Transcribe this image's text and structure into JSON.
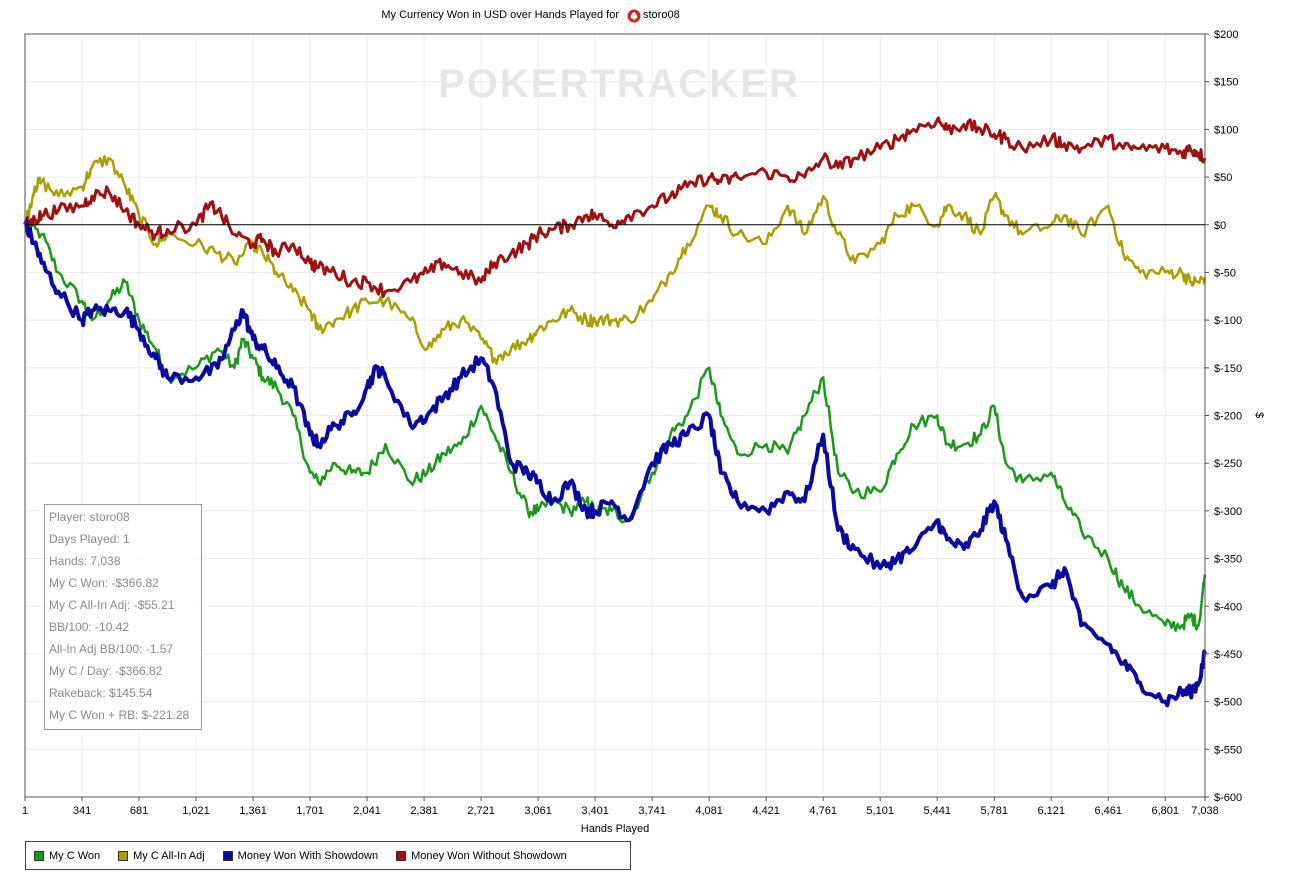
{
  "chart_data": {
    "type": "line",
    "title": "My Currency Won in USD over Hands Played for",
    "player_name": "storo08",
    "watermark": "POKERTRACKER",
    "xlabel": "Hands Played",
    "ylabel": "$",
    "xlim": [
      1,
      7038
    ],
    "ylim": [
      -600,
      200
    ],
    "x_ticks": [
      "1",
      "341",
      "681",
      "1,021",
      "1,361",
      "1,701",
      "2,041",
      "2,381",
      "2,721",
      "3,061",
      "3,401",
      "3,741",
      "4,081",
      "4,421",
      "4,761",
      "5,101",
      "5,441",
      "5,781",
      "6,121",
      "6,461",
      "6,801",
      "7,038"
    ],
    "x_tick_values": [
      1,
      341,
      681,
      1021,
      1361,
      1701,
      2041,
      2381,
      2721,
      3061,
      3401,
      3741,
      4081,
      4421,
      4761,
      5101,
      5441,
      5781,
      6121,
      6461,
      6801,
      7038
    ],
    "y_ticks": [
      "$200",
      "$150",
      "$100",
      "$50",
      "$0",
      "$-50",
      "$-100",
      "$-150",
      "$-200",
      "$-250",
      "$-300",
      "$-350",
      "$-400",
      "$-450",
      "$-500",
      "$-550",
      "$-600"
    ],
    "y_tick_values": [
      200,
      150,
      100,
      50,
      0,
      -50,
      -100,
      -150,
      -200,
      -250,
      -300,
      -350,
      -400,
      -450,
      -500,
      -550,
      -600
    ],
    "grid": true,
    "series": [
      {
        "name": "My C Won",
        "color": "#1a9a1a",
        "x": [
          1,
          100,
          200,
          341,
          400,
          500,
          600,
          681,
          780,
          850,
          1021,
          1150,
          1250,
          1300,
          1361,
          1420,
          1500,
          1600,
          1701,
          1750,
          1850,
          1950,
          2041,
          2150,
          2300,
          2400,
          2500,
          2600,
          2721,
          2800,
          2900,
          3000,
          3061,
          3150,
          3250,
          3350,
          3401,
          3500,
          3600,
          3741,
          3850,
          3950,
          4081,
          4150,
          4250,
          4421,
          4550,
          4650,
          4761,
          4850,
          4950,
          5101,
          5200,
          5300,
          5441,
          5500,
          5600,
          5700,
          5781,
          5850,
          5950,
          6121,
          6200,
          6300,
          6461,
          6550,
          6650,
          6801,
          6900,
          6950,
          7000,
          7038
        ],
        "y": [
          0,
          -10,
          -50,
          -80,
          -100,
          -80,
          -60,
          -100,
          -130,
          -160,
          -150,
          -130,
          -150,
          -120,
          -140,
          -160,
          -170,
          -200,
          -260,
          -270,
          -250,
          -260,
          -260,
          -230,
          -270,
          -260,
          -240,
          -230,
          -190,
          -220,
          -260,
          -300,
          -300,
          -290,
          -300,
          -290,
          -300,
          -300,
          -310,
          -260,
          -220,
          -200,
          -150,
          -200,
          -240,
          -230,
          -240,
          -200,
          -160,
          -260,
          -280,
          -280,
          -240,
          -210,
          -200,
          -230,
          -230,
          -220,
          -190,
          -250,
          -270,
          -260,
          -290,
          -320,
          -350,
          -380,
          -400,
          -420,
          -420,
          -410,
          -420,
          -366.82
        ]
      },
      {
        "name": "My C All-In Adj",
        "color": "#a8a000",
        "x": [
          1,
          60,
          100,
          200,
          341,
          400,
          500,
          600,
          681,
          780,
          850,
          1021,
          1150,
          1250,
          1361,
          1420,
          1500,
          1600,
          1701,
          1750,
          1850,
          1950,
          2041,
          2150,
          2300,
          2400,
          2500,
          2600,
          2721,
          2800,
          2900,
          3000,
          3061,
          3150,
          3250,
          3350,
          3401,
          3500,
          3600,
          3741,
          3850,
          3950,
          4081,
          4150,
          4250,
          4421,
          4550,
          4650,
          4761,
          4850,
          4950,
          5101,
          5200,
          5300,
          5441,
          5500,
          5600,
          5700,
          5781,
          5850,
          5950,
          6121,
          6200,
          6300,
          6461,
          6550,
          6650,
          6801,
          6900,
          6950,
          7000,
          7038
        ],
        "y": [
          0,
          40,
          45,
          30,
          40,
          60,
          70,
          40,
          10,
          -20,
          -10,
          -20,
          -30,
          -40,
          -20,
          -30,
          -50,
          -70,
          -90,
          -110,
          -100,
          -90,
          -80,
          -80,
          -100,
          -130,
          -110,
          -100,
          -120,
          -140,
          -130,
          -120,
          -110,
          -100,
          -90,
          -100,
          -100,
          -100,
          -100,
          -80,
          -50,
          -20,
          20,
          10,
          -10,
          -20,
          20,
          -10,
          30,
          -10,
          -40,
          -20,
          10,
          20,
          0,
          20,
          10,
          -10,
          30,
          10,
          -10,
          0,
          10,
          -10,
          20,
          -30,
          -50,
          -50,
          -50,
          -60,
          -60,
          -55.21
        ]
      },
      {
        "name": "Money Won With Showdown",
        "color": "#0a0aa0",
        "x": [
          1,
          60,
          100,
          200,
          341,
          400,
          500,
          600,
          681,
          780,
          850,
          1021,
          1150,
          1250,
          1300,
          1361,
          1420,
          1500,
          1600,
          1701,
          1750,
          1850,
          1950,
          2041,
          2100,
          2150,
          2300,
          2400,
          2500,
          2600,
          2721,
          2800,
          2900,
          3000,
          3061,
          3150,
          3250,
          3350,
          3401,
          3500,
          3600,
          3741,
          3850,
          3950,
          4081,
          4150,
          4250,
          4421,
          4550,
          4650,
          4761,
          4850,
          4950,
          5101,
          5200,
          5300,
          5441,
          5500,
          5600,
          5700,
          5781,
          5850,
          5950,
          6121,
          6200,
          6300,
          6461,
          6550,
          6650,
          6801,
          6900,
          6950,
          7000,
          7038
        ],
        "y": [
          0,
          -20,
          -40,
          -70,
          -100,
          -90,
          -90,
          -90,
          -110,
          -140,
          -160,
          -160,
          -150,
          -110,
          -90,
          -120,
          -130,
          -150,
          -170,
          -220,
          -230,
          -210,
          -200,
          -170,
          -150,
          -160,
          -210,
          -200,
          -180,
          -160,
          -140,
          -170,
          -250,
          -260,
          -270,
          -290,
          -270,
          -300,
          -300,
          -290,
          -310,
          -250,
          -230,
          -220,
          -200,
          -260,
          -290,
          -300,
          -280,
          -290,
          -220,
          -320,
          -340,
          -360,
          -350,
          -340,
          -310,
          -330,
          -340,
          -320,
          -290,
          -330,
          -390,
          -380,
          -360,
          -420,
          -440,
          -460,
          -480,
          -500,
          -490,
          -490,
          -480,
          -450
        ]
      },
      {
        "name": "Money Won Without Showdown",
        "color": "#a01010",
        "x": [
          1,
          60,
          100,
          200,
          341,
          400,
          500,
          600,
          681,
          780,
          850,
          1021,
          1100,
          1150,
          1250,
          1361,
          1420,
          1500,
          1600,
          1701,
          1750,
          1850,
          1950,
          2041,
          2150,
          2300,
          2400,
          2500,
          2600,
          2721,
          2800,
          2900,
          3000,
          3061,
          3150,
          3250,
          3350,
          3401,
          3500,
          3600,
          3741,
          3850,
          3950,
          4081,
          4150,
          4250,
          4421,
          4550,
          4650,
          4761,
          4850,
          4950,
          5101,
          5200,
          5300,
          5441,
          5500,
          5600,
          5700,
          5781,
          5850,
          5950,
          6121,
          6200,
          6300,
          6461,
          6550,
          6650,
          6801,
          6900,
          6950,
          7000,
          7038
        ],
        "y": [
          0,
          5,
          10,
          15,
          20,
          30,
          35,
          15,
          0,
          -10,
          -5,
          0,
          20,
          15,
          -10,
          -20,
          -15,
          -30,
          -20,
          -40,
          -45,
          -50,
          -60,
          -60,
          -70,
          -60,
          -50,
          -40,
          -50,
          -60,
          -40,
          -30,
          -20,
          -10,
          -5,
          0,
          10,
          10,
          0,
          10,
          20,
          30,
          40,
          50,
          45,
          50,
          55,
          50,
          50,
          70,
          60,
          70,
          80,
          90,
          100,
          110,
          100,
          105,
          100,
          95,
          90,
          80,
          90,
          85,
          80,
          90,
          80,
          80,
          80,
          75,
          80,
          75,
          70
        ]
      }
    ],
    "legend": [
      "My C Won",
      "My C All-In Adj",
      "Money Won With Showdown",
      "Money Won Without Showdown"
    ],
    "legend_position": "bottom-left"
  },
  "stats_box": [
    "Player: storo08",
    "Days Played: 1",
    "Hands: 7,038",
    "My C Won: -$366.82",
    "My C All-In Adj: -$55.21",
    "BB/100: -10.42",
    "All-In Adj BB/100: -1.57",
    "My C / Day: -$366.82",
    "Rakeback: $145.54",
    "My C Won + RB: $-221.28"
  ]
}
